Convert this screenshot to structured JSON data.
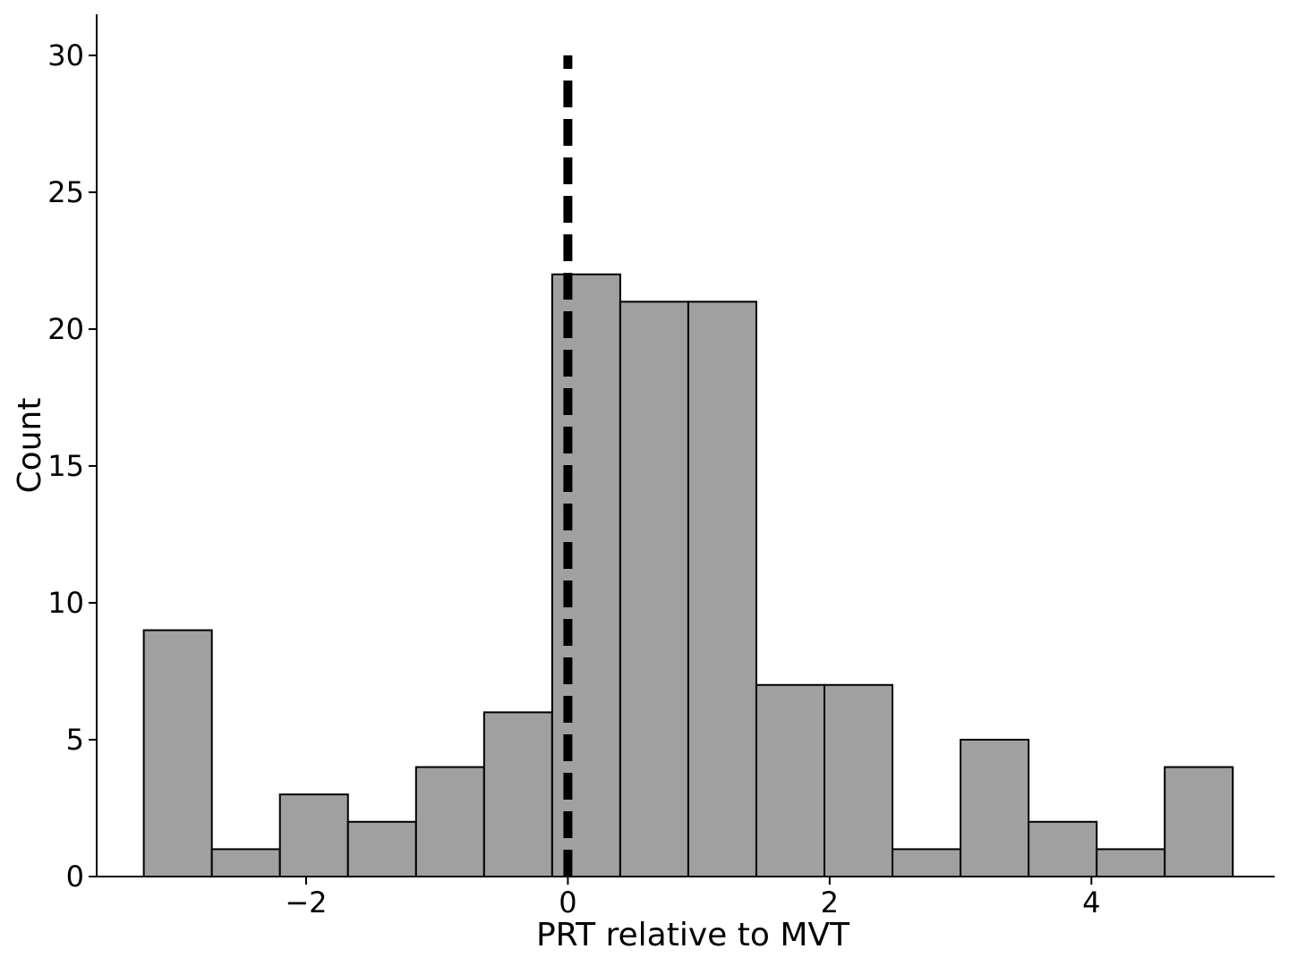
{
  "chart_data": {
    "type": "bar",
    "subtype": "histogram",
    "title": "",
    "xlabel": "PRT relative to MVT",
    "ylabel": "Count",
    "xlim": [
      -3.6,
      5.4
    ],
    "ylim": [
      0,
      31.5
    ],
    "xticks": [
      -2,
      0,
      2,
      4
    ],
    "xtick_labels": [
      "−2",
      "0",
      "2",
      "4"
    ],
    "yticks": [
      0,
      5,
      10,
      15,
      20,
      25,
      30
    ],
    "ytick_labels": [
      "0",
      "5",
      "10",
      "15",
      "20",
      "25",
      "30"
    ],
    "bin_edges": [
      -3.24,
      -2.72,
      -2.2,
      -1.68,
      -1.16,
      -0.64,
      -0.12,
      0.4,
      0.92,
      1.44,
      1.96,
      2.48,
      3.0,
      3.52,
      4.04,
      4.56,
      5.08
    ],
    "values": [
      9,
      1,
      3,
      2,
      4,
      6,
      22,
      21,
      21,
      7,
      7,
      1,
      5,
      2,
      1,
      4
    ],
    "reference_line": {
      "x": 0,
      "y_range": [
        0,
        30
      ],
      "style": "dashed"
    },
    "grid": false,
    "legend": null,
    "colors": {
      "bar_fill": "#a0a0a0",
      "bar_edge": "#000000",
      "reference_line": "#000000"
    }
  }
}
